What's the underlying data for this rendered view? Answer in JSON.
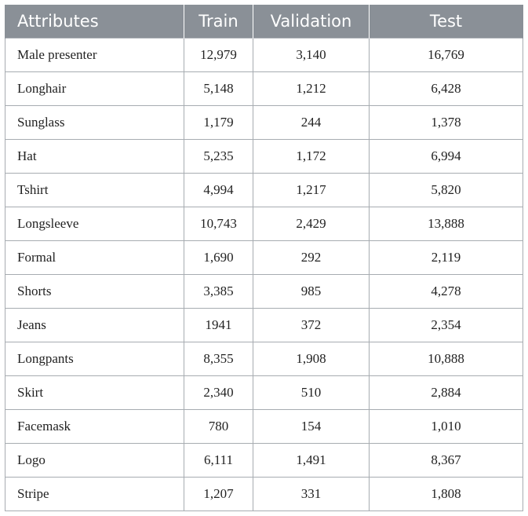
{
  "table": {
    "headers": [
      "Attributes",
      "Train",
      "Validation",
      "Test"
    ],
    "rows": [
      [
        "Male presenter",
        "12,979",
        "3,140",
        "16,769"
      ],
      [
        "Longhair",
        "5,148",
        "1,212",
        "6,428"
      ],
      [
        "Sunglass",
        "1,179",
        "244",
        "1,378"
      ],
      [
        "Hat",
        "5,235",
        "1,172",
        "6,994"
      ],
      [
        "Tshirt",
        "4,994",
        "1,217",
        "5,820"
      ],
      [
        "Longsleeve",
        "10,743",
        "2,429",
        "13,888"
      ],
      [
        "Formal",
        "1,690",
        "292",
        "2,119"
      ],
      [
        "Shorts",
        "3,385",
        "985",
        "4,278"
      ],
      [
        "Jeans",
        "1941",
        "372",
        "2,354"
      ],
      [
        "Longpants",
        "8,355",
        "1,908",
        "10,888"
      ],
      [
        "Skirt",
        "2,340",
        "510",
        "2,884"
      ],
      [
        "Facemask",
        "780",
        "154",
        "1,010"
      ],
      [
        "Logo",
        "6,111",
        "1,491",
        "8,367"
      ],
      [
        "Stripe",
        "1,207",
        "331",
        "1,808"
      ]
    ]
  }
}
